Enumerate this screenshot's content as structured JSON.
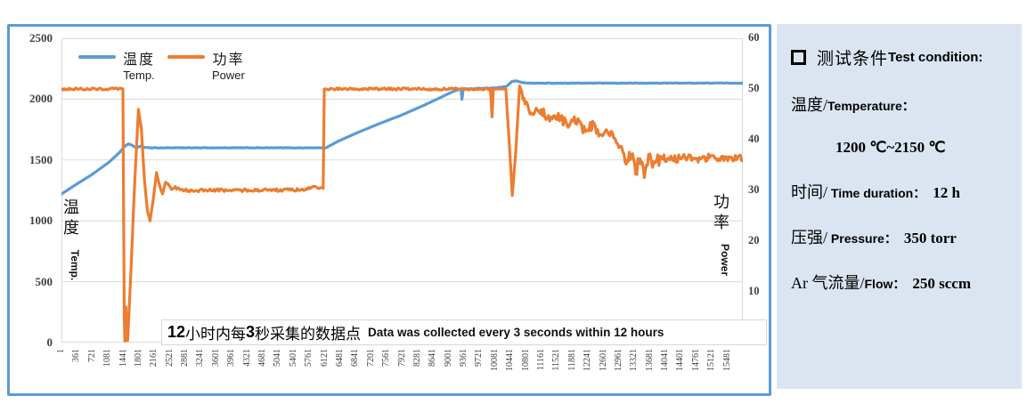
{
  "panel": {
    "title_cn": "测试条件",
    "title_en": "Test condition:",
    "bullet_icon": "square-outline",
    "rows": [
      {
        "cn": "温度/",
        "en": "Temperature：",
        "value": "",
        "indent": false
      },
      {
        "cn": "",
        "en": "",
        "value": "1200 ℃~2150 ℃",
        "indent": true
      },
      {
        "cn": "时间/",
        "en": " Time duration：",
        "value": "12 h",
        "indent": false
      },
      {
        "cn": "压强/",
        "en": " Pressure：",
        "value": "350 torr",
        "indent": false
      },
      {
        "cn": "Ar 气流量/",
        "en": "Flow：",
        "value": "250 sccm",
        "indent": false
      }
    ]
  },
  "chart_data": {
    "type": "line",
    "x_range": [
      1,
      15840
    ],
    "grid": true,
    "legend_position": "top-left-inside",
    "left_axis": {
      "title_cn": "温度",
      "title_en": "Temp.",
      "max": 2500,
      "min": 0,
      "ticks": [
        2500,
        2000,
        1500,
        1000,
        500,
        0
      ]
    },
    "right_axis": {
      "title_cn": "功率",
      "title_en": "Power",
      "max": 60,
      "min": 0,
      "ticks": [
        60,
        50,
        40,
        30,
        20,
        10,
        0
      ]
    },
    "x_axis": {
      "tick_labels": [
        1,
        361,
        721,
        1081,
        1441,
        1801,
        2161,
        2521,
        2881,
        3241,
        3601,
        3961,
        4321,
        4681,
        5041,
        5401,
        5761,
        6121,
        6481,
        6841,
        7201,
        7561,
        7921,
        8281,
        8641,
        9001,
        9361,
        9721,
        10081,
        10441,
        10801,
        11161,
        11521,
        11881,
        12241,
        12601,
        12961,
        13321,
        13681,
        14041,
        14401,
        14761,
        15121,
        15481
      ]
    },
    "annotation": {
      "num1": "12",
      "cn1": "小时内每",
      "num2": "3",
      "cn2": "秒采集的数据点",
      "en": "Data was collected every 3 seconds within 12 hours"
    },
    "series": [
      {
        "label_cn": "温度",
        "label_en": "Temp.",
        "axis": "left",
        "color": "#5B9BD5",
        "keypoints": [
          [
            1,
            1220
          ],
          [
            300,
            1290
          ],
          [
            700,
            1378
          ],
          [
            1100,
            1480
          ],
          [
            1350,
            1562
          ],
          [
            1480,
            1615
          ],
          [
            1560,
            1632
          ],
          [
            1640,
            1622
          ],
          [
            1700,
            1608
          ],
          [
            1760,
            1602
          ],
          [
            1830,
            1614
          ],
          [
            1920,
            1604
          ],
          [
            2080,
            1600
          ],
          [
            6150,
            1600
          ],
          [
            6420,
            1652
          ],
          [
            6900,
            1728
          ],
          [
            7400,
            1800
          ],
          [
            7900,
            1868
          ],
          [
            8400,
            1945
          ],
          [
            8900,
            2028
          ],
          [
            9100,
            2062
          ],
          [
            9250,
            2080
          ],
          [
            9290,
            2082
          ],
          [
            9310,
            1998
          ],
          [
            9340,
            2082
          ],
          [
            9700,
            2088
          ],
          [
            10100,
            2092
          ],
          [
            10350,
            2106
          ],
          [
            10480,
            2146
          ],
          [
            10560,
            2150
          ],
          [
            10700,
            2137
          ],
          [
            10900,
            2131
          ],
          [
            15840,
            2132
          ]
        ],
        "noise": [
          [
            2100,
            6120,
            2.0
          ],
          [
            9400,
            15840,
            2.2
          ]
        ]
      },
      {
        "label_cn": "功率",
        "label_en": "Power",
        "axis": "right",
        "color": "#ED7D31",
        "keypoints": [
          [
            1,
            50
          ],
          [
            1430,
            50
          ],
          [
            1445,
            28
          ],
          [
            1460,
            5
          ],
          [
            1475,
            0.3
          ],
          [
            1500,
            7
          ],
          [
            1520,
            1
          ],
          [
            1540,
            0.4
          ],
          [
            1610,
            13
          ],
          [
            1700,
            31
          ],
          [
            1790,
            46
          ],
          [
            1860,
            42
          ],
          [
            1930,
            32
          ],
          [
            2000,
            26
          ],
          [
            2060,
            24
          ],
          [
            2140,
            28.5
          ],
          [
            2210,
            33.5
          ],
          [
            2280,
            31
          ],
          [
            2350,
            29.3
          ],
          [
            2420,
            31.6
          ],
          [
            2490,
            31.2
          ],
          [
            2560,
            30.2
          ],
          [
            2650,
            30.6
          ],
          [
            2750,
            30.1
          ],
          [
            2950,
            30
          ],
          [
            5600,
            30.1
          ],
          [
            5900,
            30.7
          ],
          [
            6050,
            30.4
          ],
          [
            6085,
            30.5
          ],
          [
            6110,
            50
          ],
          [
            9970,
            50
          ],
          [
            10010,
            44.5
          ],
          [
            10040,
            50
          ],
          [
            10330,
            50
          ],
          [
            10420,
            38
          ],
          [
            10480,
            29
          ],
          [
            10560,
            37.5
          ],
          [
            10650,
            50.6
          ],
          [
            10780,
            47.5
          ],
          [
            10950,
            45
          ],
          [
            11150,
            45.8
          ],
          [
            11350,
            43.8
          ],
          [
            11550,
            44.8
          ],
          [
            11750,
            43
          ],
          [
            11950,
            43.8
          ],
          [
            12150,
            42
          ],
          [
            12350,
            42.8
          ],
          [
            12550,
            40.8
          ],
          [
            12750,
            41.3
          ],
          [
            12900,
            39.5
          ],
          [
            13050,
            38
          ],
          [
            13150,
            34.8
          ],
          [
            13250,
            37.5
          ],
          [
            13350,
            33.5
          ],
          [
            13450,
            36.8
          ],
          [
            13550,
            33.8
          ],
          [
            13650,
            36.5
          ],
          [
            13800,
            35
          ],
          [
            13950,
            36.6
          ],
          [
            14200,
            36
          ],
          [
            14500,
            36.7
          ],
          [
            14800,
            36.1
          ],
          [
            15100,
            36.6
          ],
          [
            15400,
            36.2
          ],
          [
            15840,
            36.5
          ]
        ],
        "noise": [
          [
            1,
            1420,
            0.22
          ],
          [
            2650,
            6085,
            0.28
          ],
          [
            6115,
            9960,
            0.22
          ],
          [
            10700,
            13050,
            0.9
          ],
          [
            13050,
            13950,
            1.4
          ],
          [
            13950,
            15840,
            0.75
          ]
        ]
      }
    ],
    "colors": {
      "temp_line": "#5B9BD5",
      "power_line": "#ED7D31",
      "chart_border": "#5B9BD5",
      "panel_bg": "#dbe5f1",
      "gridline": "#dadada"
    }
  }
}
